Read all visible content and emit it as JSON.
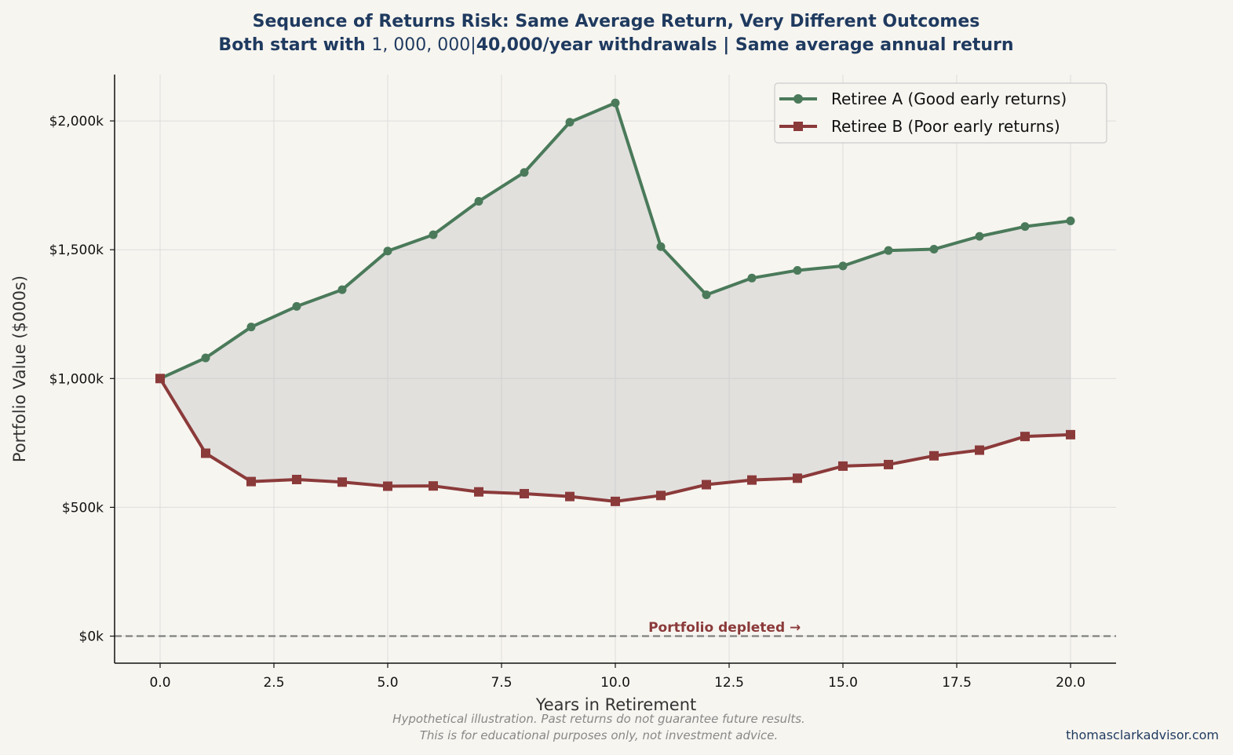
{
  "colors": {
    "background": "#f7f5f0",
    "title": "#1f3a5f",
    "series_a": "#4a7a5a",
    "series_b": "#8b3a3a",
    "fill_between": "#bdbdbd",
    "grid": "#dddddd",
    "zero_line": "#808080"
  },
  "chart_data": {
    "type": "line",
    "title": "Sequence of Returns Risk: Same Average Return, Very Different Outcomes",
    "subtitle": {
      "part1": "Both start with ",
      "part2": "1, 000, 000|",
      "part3": "40,000/year withdrawals | Same average annual return"
    },
    "xlabel": "Years in Retirement",
    "ylabel": "Portfolio Value ($000s)",
    "xlim": [
      -1,
      21
    ],
    "ylim": [
      -105,
      2180
    ],
    "x_ticks": [
      0,
      2.5,
      5,
      7.5,
      10,
      12.5,
      15,
      17.5,
      20
    ],
    "x_tick_labels": [
      "0.0",
      "2.5",
      "5.0",
      "7.5",
      "10.0",
      "12.5",
      "15.0",
      "17.5",
      "20.0"
    ],
    "y_ticks": [
      0,
      500,
      1000,
      1500,
      2000
    ],
    "y_tick_labels": [
      "$0k",
      "$500k",
      "$1,000k",
      "$1,500k",
      "$2,000k"
    ],
    "grid": true,
    "legend_position": "top-right",
    "x": [
      0,
      1,
      2,
      3,
      4,
      5,
      6,
      7,
      8,
      9,
      10,
      11,
      12,
      13,
      14,
      15,
      16,
      17,
      18,
      19,
      20
    ],
    "series": [
      {
        "name": "Retiree A (Good early returns)",
        "marker": "circle",
        "values": [
          1000,
          1080,
          1200,
          1280,
          1345,
          1495,
          1558,
          1688,
          1800,
          1995,
          2070,
          1512,
          1325,
          1390,
          1420,
          1437,
          1497,
          1502,
          1552,
          1590,
          1612
        ]
      },
      {
        "name": "Retiree B (Poor early returns)",
        "marker": "square",
        "values": [
          1000,
          710,
          600,
          608,
          598,
          582,
          583,
          560,
          553,
          542,
          523,
          546,
          588,
          606,
          613,
          660,
          666,
          700,
          722,
          775,
          782
        ]
      }
    ],
    "annotations": [
      {
        "text": "Portfolio depleted →",
        "x": 12.4,
        "y": 35
      }
    ],
    "reference_line": {
      "y": 0,
      "style": "dashed"
    }
  },
  "footer": {
    "disclaimer_line1": "Hypothetical illustration. Past returns do not guarantee future results.",
    "disclaimer_line2": "This is for educational purposes only, not investment advice.",
    "credit": "thomasclarkadvisor.com"
  }
}
